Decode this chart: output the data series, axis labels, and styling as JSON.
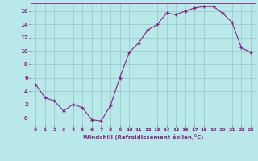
{
  "x": [
    0,
    1,
    2,
    3,
    4,
    5,
    6,
    7,
    8,
    9,
    10,
    11,
    12,
    13,
    14,
    15,
    16,
    17,
    18,
    19,
    20,
    21,
    22,
    23
  ],
  "y": [
    5.0,
    3.0,
    2.5,
    1.0,
    2.0,
    1.5,
    -0.3,
    -0.5,
    1.8,
    6.0,
    9.8,
    11.2,
    13.2,
    14.0,
    15.7,
    15.5,
    16.0,
    16.5,
    16.7,
    16.7,
    15.7,
    14.3,
    10.5,
    9.8
  ],
  "line_color": "#882288",
  "marker": "+",
  "marker_size": 3.5,
  "marker_linewidth": 1.0,
  "linewidth": 0.8,
  "background_color": "#b8e8e8",
  "grid_color": "#99cccc",
  "xlabel": "Windchill (Refroidissement éolien,°C)",
  "ytick_labels": [
    "-0",
    "2",
    "4",
    "6",
    "8",
    "10",
    "12",
    "14",
    "16"
  ],
  "ytick_values": [
    0,
    2,
    4,
    6,
    8,
    10,
    12,
    14,
    16
  ],
  "xticks": [
    0,
    1,
    2,
    3,
    4,
    5,
    6,
    7,
    8,
    9,
    10,
    11,
    12,
    13,
    14,
    15,
    16,
    17,
    18,
    19,
    20,
    21,
    22,
    23
  ],
  "ylim": [
    -1.2,
    17.2
  ],
  "xlim": [
    -0.5,
    23.5
  ],
  "xlabel_fontsize": 5.0,
  "tick_fontsize": 4.5
}
